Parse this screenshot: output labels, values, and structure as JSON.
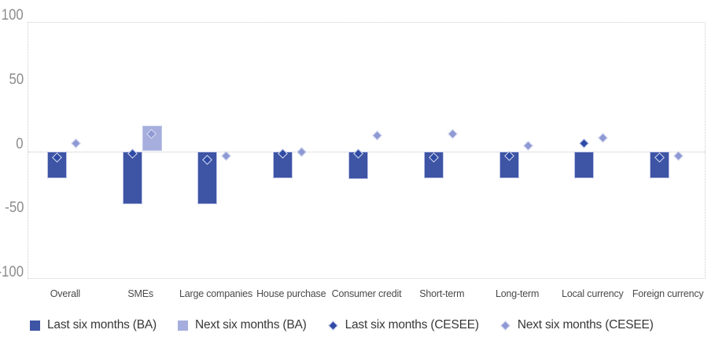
{
  "chart_data": {
    "type": "bar",
    "subtype": "grouped bars with diamond scatter overlay (net percentages)",
    "title": "",
    "xlabel": "",
    "ylabel": "",
    "categories": [
      "Overall",
      "SMEs",
      "Large companies",
      "House purchase",
      "Consumer credit",
      "Short-term",
      "Long-term",
      "Local currency",
      "Foreign currency"
    ],
    "series": [
      {
        "name": "Last six months (BA)",
        "type": "bar",
        "marker": "square",
        "color": "#3E54A4",
        "values": [
          -21,
          -41,
          -41,
          -21,
          -22,
          -21,
          -21,
          -21,
          -21
        ]
      },
      {
        "name": "Next six months (BA)",
        "type": "bar",
        "marker": "square",
        "color": "#A5AEDD",
        "values": [
          0,
          20,
          0,
          0,
          0,
          0,
          0,
          0,
          0
        ]
      },
      {
        "name": "Last six months (CESEE)",
        "type": "scatter",
        "marker": "diamond",
        "color": "#2F4BA6",
        "values": [
          -5,
          -2,
          -7,
          -2,
          -2,
          -5,
          -4,
          6,
          -5
        ]
      },
      {
        "name": "Next six months (CESEE)",
        "type": "scatter",
        "marker": "diamond",
        "color": "#8F99D4",
        "values": [
          6,
          13,
          -4,
          -1,
          12,
          13,
          4,
          10,
          -4
        ]
      }
    ],
    "ylim": [
      -100,
      100
    ],
    "yticks": [
      100,
      50,
      0,
      -50,
      -100
    ],
    "grid": "dotted plot border and dotted zero line only",
    "legend_position": "bottom"
  },
  "palette": {
    "bg": "#FFFFFF",
    "plot-border": "#CBCBCB",
    "zero-line": "#C2C2C2",
    "bar-border": "#BEC5E9",
    "marker-stroke": "#DDE1F2",
    "ytick-text": "#8C8C8C",
    "xlabel-text": "#4A4A4A",
    "legend-text": "#383838"
  }
}
